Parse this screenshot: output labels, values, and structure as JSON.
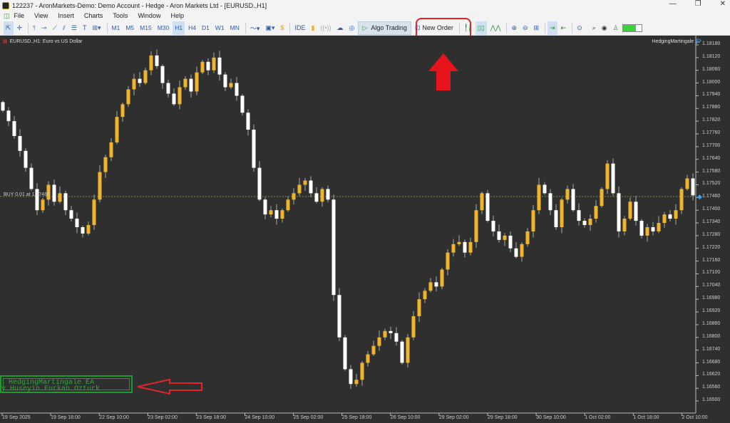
{
  "window": {
    "title": "122237 - AronMarkets-Demo: Demo Account - Hedge - Aron Markets Ltd - [EURUSD.,H1]",
    "minimize": "—",
    "maximize": "❐",
    "close": "✕"
  },
  "menu": [
    "File",
    "View",
    "Insert",
    "Charts",
    "Tools",
    "Window",
    "Help"
  ],
  "toolbar": {
    "timeframes": [
      "M1",
      "M5",
      "M15",
      "M30",
      "H1",
      "H4",
      "D1",
      "W1",
      "MN"
    ],
    "selected_timeframe": "H1",
    "ide": "IDE",
    "algo_trading": "Algo Trading",
    "new_order": "New Order"
  },
  "chart": {
    "header": "EURUSD.,H1:  Euro vs US Dollar",
    "ea_name": "HedgingMartingale",
    "buy_label": "BUY 0.01 at 1.17465",
    "buy_price": 1.17465,
    "price_labels": [
      "1.18180",
      "1.18120",
      "1.18060",
      "1.18000",
      "1.17940",
      "1.17880",
      "1.17820",
      "1.17760",
      "1.17700",
      "1.17640",
      "1.17580",
      "1.17520",
      "1.17460",
      "1.17400",
      "1.17340",
      "1.17280",
      "1.17220",
      "1.17160",
      "1.17100",
      "1.17040",
      "1.16980",
      "1.16920",
      "1.16860",
      "1.16800",
      "1.16740",
      "1.16680",
      "1.16620",
      "1.16560",
      "1.16500"
    ],
    "time_labels": [
      "19 Sep 2025",
      "19 Sep 18:00",
      "22 Sep 10:00",
      "23 Sep 02:00",
      "23 Sep 18:00",
      "24 Sep 10:00",
      "25 Sep 02:00",
      "25 Sep 18:00",
      "26 Sep 10:00",
      "29 Sep 02:00",
      "29 Sep 18:00",
      "30 Sep 10:00",
      "1 Oct 02:00",
      "1 Oct 18:00",
      "2 Oct 10:00"
    ],
    "colors": {
      "bull": "#f0b429",
      "bear": "#ffffff",
      "background": "#2f2f2f",
      "buy_line": "#8a8a3a"
    },
    "closes": [
      1.1787,
      1.1782,
      1.1775,
      1.1768,
      1.176,
      1.175,
      1.174,
      1.1745,
      1.1752,
      1.1744,
      1.1748,
      1.174,
      1.1736,
      1.1732,
      1.1729,
      1.1733,
      1.1745,
      1.1758,
      1.1765,
      1.1772,
      1.1784,
      1.179,
      1.1797,
      1.1802,
      1.18,
      1.1806,
      1.1813,
      1.1808,
      1.18,
      1.1795,
      1.179,
      1.1798,
      1.1802,
      1.1796,
      1.1805,
      1.181,
      1.1806,
      1.1812,
      1.1804,
      1.1798,
      1.18,
      1.1794,
      1.1786,
      1.1778,
      1.176,
      1.1745,
      1.1738,
      1.174,
      1.1736,
      1.174,
      1.1745,
      1.1748,
      1.1752,
      1.1754,
      1.1748,
      1.1744,
      1.175,
      1.1745,
      1.17,
      1.168,
      1.1665,
      1.1658,
      1.166,
      1.1668,
      1.1672,
      1.1676,
      1.168,
      1.1683,
      1.1682,
      1.1678,
      1.1668,
      1.168,
      1.169,
      1.1698,
      1.1702,
      1.1706,
      1.1704,
      1.1712,
      1.172,
      1.1724,
      1.1725,
      1.172,
      1.1725,
      1.174,
      1.1748,
      1.1735,
      1.173,
      1.1726,
      1.1728,
      1.1722,
      1.1718,
      1.1724,
      1.173,
      1.174,
      1.1752,
      1.1748,
      1.174,
      1.1732,
      1.1745,
      1.175,
      1.174,
      1.1735,
      1.1733,
      1.1736,
      1.1742,
      1.175,
      1.1762,
      1.1748,
      1.173,
      1.1736,
      1.1744,
      1.1735,
      1.1728,
      1.1732,
      1.173,
      1.1734,
      1.1738,
      1.1736,
      1.174,
      1.175,
      1.1755,
      1.1747
    ]
  },
  "annotation": {
    "line1": "HedgingMartingale EA",
    "line2": "by Huseyin Furkan Ozturk"
  }
}
